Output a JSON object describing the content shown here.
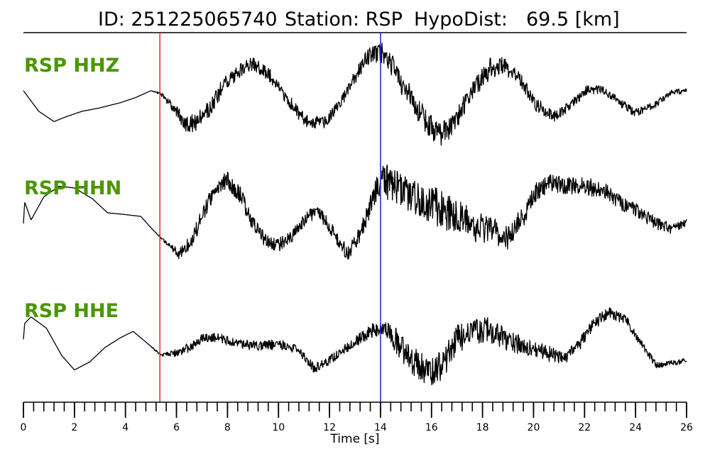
{
  "title": {
    "id_label": "ID: 251225065740",
    "station_label": "Station: RSP",
    "dist_label": "HypoDist:",
    "dist_value": "69.5 [km]"
  },
  "chart_data": {
    "type": "line",
    "title": "ID: 251225065740   Station: RSP   HypoDist:    69.5 [km]",
    "xlabel": "Time [s]",
    "ylabel": "",
    "xlim": [
      0,
      26
    ],
    "x_ticks": [
      0,
      2,
      4,
      6,
      8,
      10,
      12,
      14,
      16,
      18,
      20,
      22,
      24,
      26
    ],
    "x_tick_labels": [
      "0",
      "2",
      "4",
      "6",
      "8",
      "10",
      "12",
      "14",
      "16",
      "18",
      "20",
      "22",
      "24",
      "26"
    ],
    "minor_tick_step": 0.4,
    "picks": [
      {
        "phase": "P",
        "time": 5.35,
        "color": "#e8262b"
      },
      {
        "phase": "S",
        "time": 14.0,
        "color": "#1d1ddd"
      }
    ],
    "channel_label_color": "#4a9600",
    "trace_color": "#000000",
    "series": [
      {
        "name": "RSP HHZ",
        "times": [
          0,
          0.1,
          0.6,
          1.2,
          1.7,
          2.3,
          3.0,
          3.8,
          4.4,
          5.0,
          5.4,
          5.9,
          6.4,
          6.8,
          7.3,
          7.8,
          8.5,
          9.0,
          9.6,
          10.3,
          11.0,
          11.8,
          12.4,
          13.0,
          13.5,
          14.0,
          14.4,
          15.0,
          15.7,
          16.3,
          16.8,
          17.5,
          18.3,
          18.8,
          19.5,
          20.1,
          20.8,
          21.4,
          22.1,
          22.7,
          23.4,
          24.0,
          24.8,
          25.4,
          26.0
        ],
        "values": [
          0.2,
          0.1,
          -0.4,
          -0.7,
          -0.55,
          -0.4,
          -0.3,
          -0.15,
          0.0,
          0.2,
          0.1,
          -0.3,
          -0.8,
          -0.7,
          -0.3,
          0.3,
          0.8,
          1.0,
          0.7,
          0.0,
          -0.65,
          -0.75,
          -0.2,
          0.6,
          1.2,
          1.35,
          1.0,
          0.2,
          -0.6,
          -1.1,
          -0.85,
          0.1,
          0.85,
          0.95,
          0.5,
          -0.2,
          -0.55,
          -0.25,
          0.2,
          0.25,
          -0.15,
          -0.45,
          -0.2,
          0.15,
          0.2
        ],
        "noise_amplitude": [
          0.0,
          0.0,
          0.0,
          0.0,
          0.0,
          0.0,
          0.0,
          0.0,
          0.0,
          0.0,
          0.05,
          0.15,
          0.25,
          0.25,
          0.25,
          0.25,
          0.2,
          0.2,
          0.2,
          0.2,
          0.2,
          0.2,
          0.15,
          0.2,
          0.25,
          0.3,
          0.35,
          0.35,
          0.35,
          0.35,
          0.3,
          0.3,
          0.3,
          0.25,
          0.2,
          0.2,
          0.15,
          0.15,
          0.15,
          0.12,
          0.12,
          0.12,
          0.1,
          0.08,
          0.08
        ],
        "y_range": [
          -1.6,
          1.6
        ]
      },
      {
        "name": "RSP HHN",
        "times": [
          0,
          0.05,
          0.3,
          0.8,
          1.4,
          2.0,
          2.7,
          3.3,
          4.0,
          4.6,
          5.1,
          5.6,
          6.1,
          6.6,
          7.1,
          7.6,
          8.0,
          8.5,
          9.0,
          9.5,
          10.0,
          10.6,
          11.2,
          11.6,
          12.2,
          12.7,
          13.2,
          13.6,
          14.0,
          14.3,
          14.8,
          15.5,
          16.2,
          17.0,
          17.8,
          18.6,
          19.0,
          19.6,
          20.0,
          20.6,
          21.3,
          22.1,
          22.8,
          23.5,
          24.2,
          24.8,
          25.4,
          26.0
        ],
        "values": [
          0.0,
          0.6,
          0.1,
          0.75,
          1.05,
          1.0,
          0.7,
          0.3,
          0.25,
          0.2,
          -0.2,
          -0.55,
          -0.85,
          -0.5,
          0.4,
          1.1,
          1.25,
          0.8,
          0.0,
          -0.5,
          -0.6,
          -0.3,
          0.25,
          0.3,
          -0.3,
          -0.85,
          -0.3,
          0.5,
          1.25,
          1.15,
          0.9,
          0.7,
          0.45,
          0.2,
          -0.1,
          -0.3,
          -0.4,
          0.2,
          0.8,
          1.15,
          1.05,
          1.05,
          0.9,
          0.55,
          0.3,
          0.0,
          -0.15,
          0.05
        ],
        "noise_amplitude": [
          0.0,
          0.0,
          0.0,
          0.0,
          0.0,
          0.0,
          0.0,
          0.0,
          0.0,
          0.0,
          0.0,
          0.05,
          0.15,
          0.2,
          0.25,
          0.25,
          0.25,
          0.25,
          0.2,
          0.2,
          0.2,
          0.2,
          0.2,
          0.2,
          0.2,
          0.2,
          0.25,
          0.3,
          0.45,
          0.5,
          0.5,
          0.5,
          0.55,
          0.5,
          0.45,
          0.4,
          0.35,
          0.3,
          0.3,
          0.25,
          0.25,
          0.25,
          0.25,
          0.22,
          0.2,
          0.18,
          0.15,
          0.12
        ],
        "y_range": [
          -1.6,
          1.6
        ]
      },
      {
        "name": "RSP HHE",
        "times": [
          0,
          0.05,
          0.3,
          0.9,
          1.5,
          2.0,
          2.6,
          3.2,
          3.8,
          4.3,
          4.9,
          5.4,
          5.9,
          6.5,
          7.1,
          7.7,
          8.4,
          9.2,
          10.0,
          10.7,
          11.4,
          12.0,
          12.7,
          13.4,
          14.0,
          14.4,
          14.9,
          15.4,
          16.0,
          16.5,
          17.0,
          17.6,
          18.2,
          18.8,
          19.4,
          20.0,
          20.6,
          21.2,
          21.8,
          22.4,
          23.0,
          23.6,
          24.2,
          24.8,
          25.4,
          26.0
        ],
        "values": [
          0.2,
          0.7,
          0.9,
          0.55,
          -0.3,
          -0.75,
          -0.5,
          -0.05,
          0.25,
          0.45,
          0.05,
          -0.3,
          -0.25,
          -0.05,
          0.25,
          0.25,
          0.05,
          0.0,
          0.05,
          -0.1,
          -0.7,
          -0.45,
          -0.05,
          0.35,
          0.6,
          0.4,
          -0.15,
          -0.5,
          -0.9,
          -0.5,
          0.2,
          0.45,
          0.5,
          0.25,
          0.05,
          -0.1,
          -0.25,
          -0.4,
          0.05,
          0.75,
          1.0,
          0.85,
          0.1,
          -0.6,
          -0.55,
          -0.45
        ],
        "noise_amplitude": [
          0.0,
          0.0,
          0.0,
          0.0,
          0.0,
          0.0,
          0.0,
          0.0,
          0.0,
          0.0,
          0.0,
          0.05,
          0.12,
          0.15,
          0.15,
          0.15,
          0.15,
          0.15,
          0.15,
          0.15,
          0.15,
          0.15,
          0.15,
          0.2,
          0.25,
          0.35,
          0.45,
          0.5,
          0.5,
          0.45,
          0.45,
          0.4,
          0.4,
          0.35,
          0.3,
          0.25,
          0.25,
          0.2,
          0.2,
          0.2,
          0.2,
          0.15,
          0.12,
          0.1,
          0.1,
          0.08
        ],
        "y_range": [
          -1.6,
          1.6
        ]
      }
    ]
  }
}
